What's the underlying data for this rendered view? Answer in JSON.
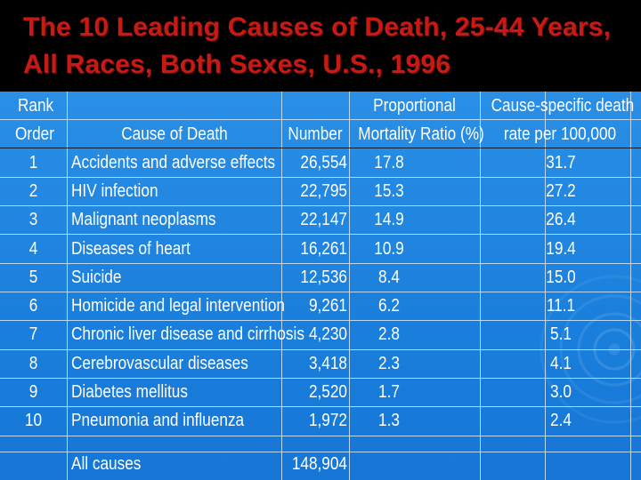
{
  "slide": {
    "title": "The 10 Leading Causes of Death, 25-44 Years, All Races, Both Sexes, U.S., 1996"
  },
  "table": {
    "headers": {
      "rank_line1": "Rank",
      "rank_line2": "Order",
      "cause": "Cause of Death",
      "number": "Number",
      "pmr_line1": "Proportional",
      "pmr_line2": "Mortality Ratio (%)",
      "rate_line1": "Cause-specific death",
      "rate_line2": "rate per 100,000"
    },
    "rows": [
      {
        "rank": "1",
        "cause": "Accidents and adverse effects",
        "number": "26,554",
        "pmr": "17.8",
        "rate": "31.7"
      },
      {
        "rank": "2",
        "cause": "HIV infection",
        "number": "22,795",
        "pmr": "15.3",
        "rate": "27.2"
      },
      {
        "rank": "3",
        "cause": "Malignant neoplasms",
        "number": "22,147",
        "pmr": "14.9",
        "rate": "26.4"
      },
      {
        "rank": "4",
        "cause": "Diseases of heart",
        "number": "16,261",
        "pmr": "10.9",
        "rate": "19.4"
      },
      {
        "rank": "5",
        "cause": "Suicide",
        "number": "12,536",
        "pmr": "8.4",
        "rate": "15.0"
      },
      {
        "rank": "6",
        "cause": "Homicide and legal intervention",
        "number": "9,261",
        "pmr": "6.2",
        "rate": "11.1"
      },
      {
        "rank": "7",
        "cause": "Chronic liver disease and cirrhosis",
        "number": "4,230",
        "pmr": "2.8",
        "rate": "5.1"
      },
      {
        "rank": "8",
        "cause": "Cerebrovascular diseases",
        "number": "3,418",
        "pmr": "2.3",
        "rate": "4.1"
      },
      {
        "rank": "9",
        "cause": "Diabetes mellitus",
        "number": "2,520",
        "pmr": "1.7",
        "rate": "3.0"
      },
      {
        "rank": "10",
        "cause": "Pneumonia and influenza",
        "number": "1,972",
        "pmr": "1.3",
        "rate": "2.4"
      }
    ],
    "total": {
      "cause": "All causes",
      "number": "148,904"
    }
  }
}
